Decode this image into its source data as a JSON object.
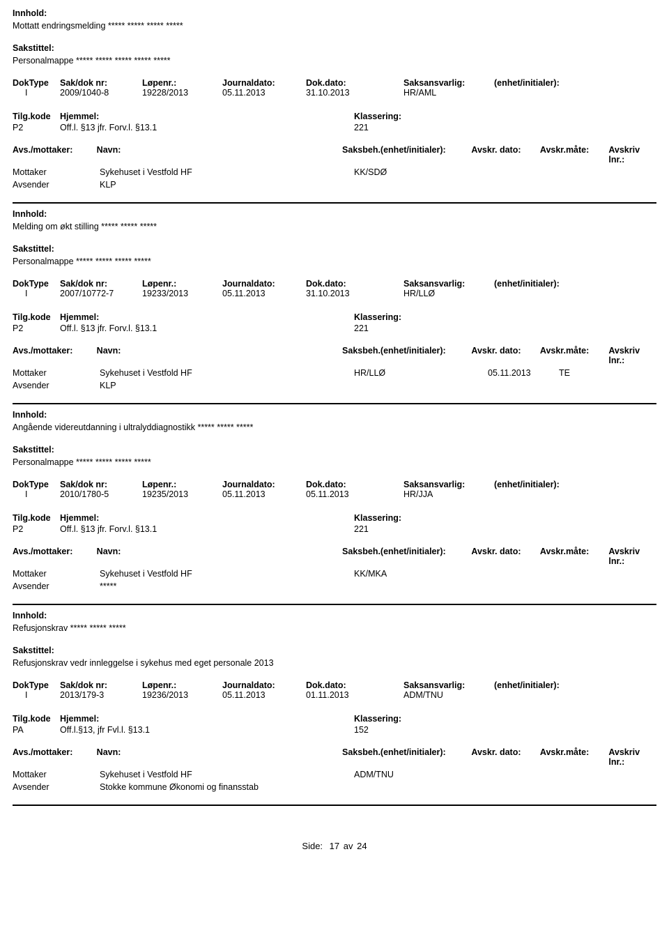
{
  "labels": {
    "innhold": "Innhold:",
    "sakstittel": "Sakstittel:",
    "doktype": "DokType",
    "sakdoknr": "Sak/dok nr:",
    "lopenr": "Løpenr.:",
    "journaldato": "Journaldato:",
    "dokdato": "Dok.dato:",
    "saksansvarlig": "Saksansvarlig:",
    "enhet_init": "(enhet/initialer):",
    "tilgkode": "Tilg.kode",
    "hjemmel": "Hjemmel:",
    "klassering": "Klassering:",
    "avs_mottaker": "Avs./mottaker:",
    "navn": "Navn:",
    "saksbeh_ei": "Saksbeh.(enhet/initialer):",
    "avskr_dato": "Avskr. dato:",
    "avskr_mate": "Avskr.måte:",
    "avskriv_lnr": "Avskriv lnr.:"
  },
  "entries": [
    {
      "innhold": "Mottatt endringsmelding ***** ***** ***** *****",
      "sakstittel": "Personalmappe ***** ***** ***** ***** *****",
      "doktype": "I",
      "sakdoknr": "2009/1040-8",
      "lopenr": "19228/2013",
      "journaldato": "05.11.2013",
      "dokdato": "31.10.2013",
      "saksansvarlig": "HR/AML",
      "tilgkode": "P2",
      "hjemmel": "Off.l. §13 jfr. Forv.l. §13.1",
      "klassering": "221",
      "parts": [
        {
          "rolle": "Mottaker",
          "navn": "Sykehuset i Vestfold HF",
          "saksbeh": "KK/SDØ",
          "adato": "",
          "amate": ""
        },
        {
          "rolle": "Avsender",
          "navn": "KLP",
          "saksbeh": "",
          "adato": "",
          "amate": ""
        }
      ]
    },
    {
      "innhold": "Melding om økt stilling ***** ***** *****",
      "sakstittel": "Personalmappe ***** ***** ***** *****",
      "doktype": "I",
      "sakdoknr": "2007/10772-7",
      "lopenr": "19233/2013",
      "journaldato": "05.11.2013",
      "dokdato": "31.10.2013",
      "saksansvarlig": "HR/LLØ",
      "tilgkode": "P2",
      "hjemmel": "Off.l. §13 jfr. Forv.l. §13.1",
      "klassering": "221",
      "parts": [
        {
          "rolle": "Mottaker",
          "navn": "Sykehuset i Vestfold HF",
          "saksbeh": "HR/LLØ",
          "adato": "05.11.2013",
          "amate": "TE"
        },
        {
          "rolle": "Avsender",
          "navn": "KLP",
          "saksbeh": "",
          "adato": "",
          "amate": ""
        }
      ]
    },
    {
      "innhold": "Angående videreutdanning i ultralyddiagnostikk ***** ***** *****",
      "sakstittel": "Personalmappe ***** ***** ***** *****",
      "doktype": "I",
      "sakdoknr": "2010/1780-5",
      "lopenr": "19235/2013",
      "journaldato": "05.11.2013",
      "dokdato": "05.11.2013",
      "saksansvarlig": "HR/JJA",
      "tilgkode": "P2",
      "hjemmel": "Off.l. §13 jfr. Forv.l. §13.1",
      "klassering": "221",
      "parts": [
        {
          "rolle": "Mottaker",
          "navn": "Sykehuset i Vestfold HF",
          "saksbeh": "KK/MKA",
          "adato": "",
          "amate": ""
        },
        {
          "rolle": "Avsender",
          "navn": "*****",
          "saksbeh": "",
          "adato": "",
          "amate": ""
        }
      ]
    },
    {
      "innhold": "Refusjonskrav ***** ***** *****",
      "sakstittel": "Refusjonskrav vedr innleggelse i sykehus med eget personale 2013",
      "doktype": "I",
      "sakdoknr": "2013/179-3",
      "lopenr": "19236/2013",
      "journaldato": "05.11.2013",
      "dokdato": "01.11.2013",
      "saksansvarlig": "ADM/TNU",
      "tilgkode": "PA",
      "hjemmel": "Off.l.§13, jfr Fvl.l. §13.1",
      "klassering": "152",
      "parts": [
        {
          "rolle": "Mottaker",
          "navn": "Sykehuset i Vestfold HF",
          "saksbeh": "ADM/TNU",
          "adato": "",
          "amate": ""
        },
        {
          "rolle": "Avsender",
          "navn": "Stokke kommune Økonomi og finansstab",
          "saksbeh": "",
          "adato": "",
          "amate": ""
        }
      ]
    }
  ],
  "footer": {
    "label": "Side:",
    "page": "17",
    "of": "av",
    "total": "24"
  }
}
